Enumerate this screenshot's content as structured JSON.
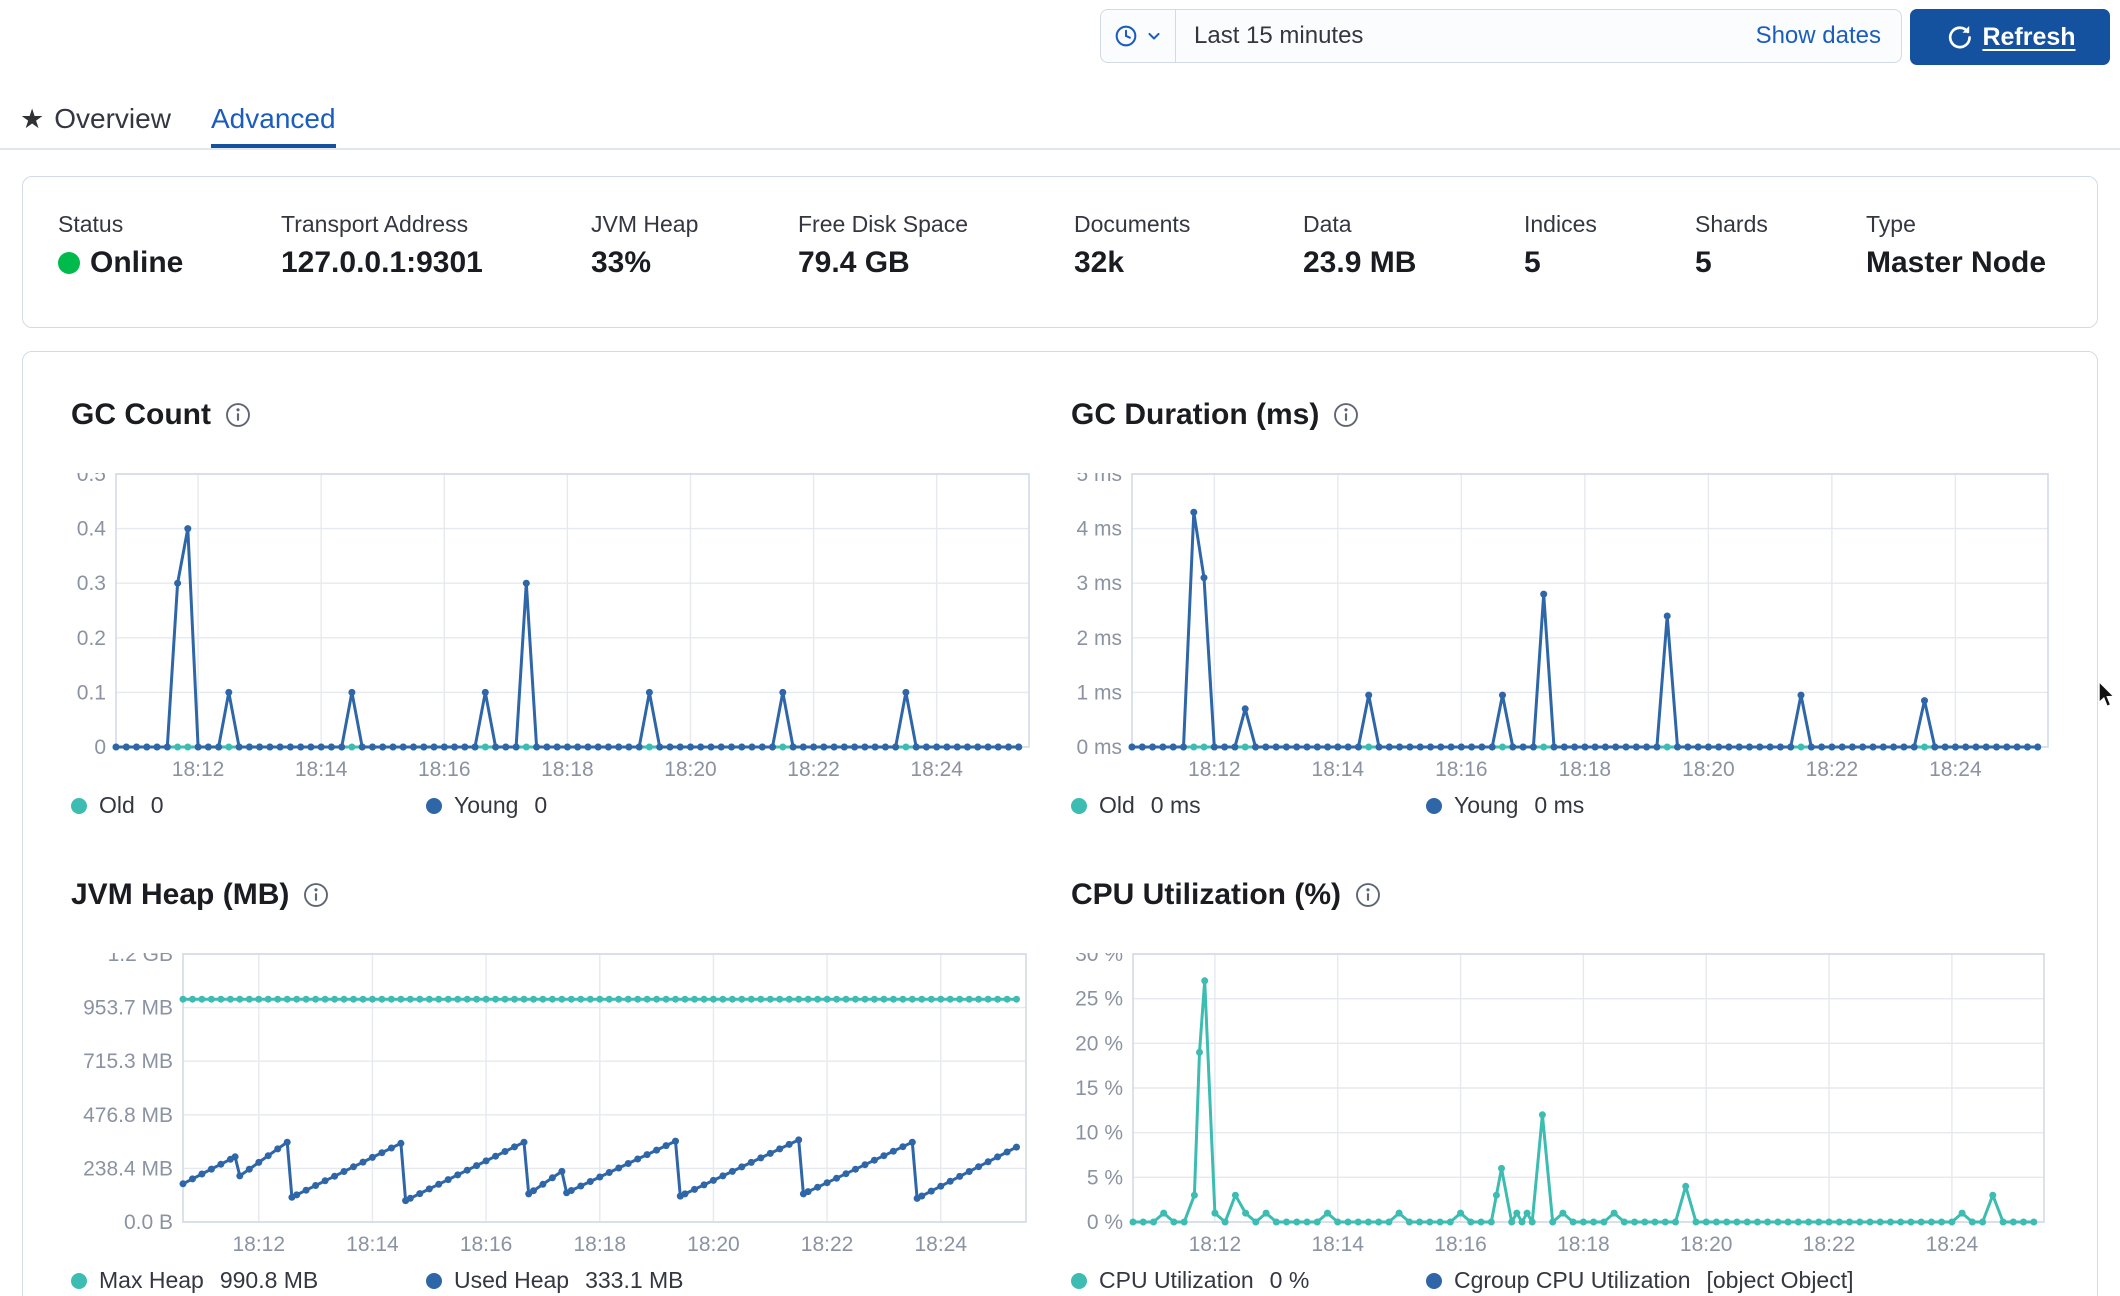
{
  "time_bar": {
    "selected_range": "Last 15 minutes",
    "show_dates_label": "Show dates",
    "refresh_label": "Refresh"
  },
  "tabs": {
    "items": [
      {
        "label": "Overview",
        "active": false
      },
      {
        "label": "Advanced",
        "active": true
      }
    ]
  },
  "status_bar": {
    "online_color": "#00bb4b",
    "stats": [
      {
        "label": "Status",
        "value": "Online",
        "health_dot": true
      },
      {
        "label": "Transport Address",
        "value": "127.0.0.1:9301"
      },
      {
        "label": "JVM Heap",
        "value": "33%"
      },
      {
        "label": "Free Disk Space",
        "value": "79.4 GB"
      },
      {
        "label": "Documents",
        "value": "32k"
      },
      {
        "label": "Data",
        "value": "23.9 MB"
      },
      {
        "label": "Indices",
        "value": "5"
      },
      {
        "label": "Shards",
        "value": "5"
      },
      {
        "label": "Type",
        "value": "Master Node"
      }
    ]
  },
  "colors": {
    "teal_series": "#3dbcb1",
    "blue_series": "#2e66a8",
    "link_blue": "#1a5dbe",
    "button_blue": "#14519e"
  },
  "chart_data": [
    {
      "type": "line",
      "title": "GC Count",
      "ylim": [
        0,
        0.5
      ],
      "y_ticks": [
        "0.5",
        "0.4",
        "0.3",
        "0.2",
        "0.1",
        "0"
      ],
      "t_domain": [
        0,
        890
      ],
      "sample_step": 10,
      "t_end": 880,
      "x_start_time": "18:10:40",
      "x_ticks": [
        {
          "t": 80,
          "label": "18:12"
        },
        {
          "t": 200,
          "label": "18:14"
        },
        {
          "t": 320,
          "label": "18:16"
        },
        {
          "t": 440,
          "label": "18:18"
        },
        {
          "t": 560,
          "label": "18:20"
        },
        {
          "t": 680,
          "label": "18:22"
        },
        {
          "t": 800,
          "label": "18:24"
        }
      ],
      "series": [
        {
          "name": "Old",
          "legend_value": "0",
          "color": "#3dbcb1",
          "baseline": 0,
          "spikes": []
        },
        {
          "name": "Young",
          "legend_value": "0",
          "color": "#2e66a8",
          "baseline": 0,
          "spikes": [
            [
              60,
              0.3
            ],
            [
              70,
              0.4
            ],
            [
              110,
              0.1
            ],
            [
              230,
              0.1
            ],
            [
              360,
              0.1
            ],
            [
              400,
              0.3
            ],
            [
              520,
              0.1
            ],
            [
              650,
              0.1
            ],
            [
              770,
              0.1
            ]
          ]
        }
      ]
    },
    {
      "type": "line",
      "title": "GC Duration (ms)",
      "ylim": [
        0,
        5
      ],
      "y_ticks": [
        "5 ms",
        "4 ms",
        "3 ms",
        "2 ms",
        "1 ms",
        "0 ms"
      ],
      "t_domain": [
        0,
        890
      ],
      "sample_step": 10,
      "t_end": 880,
      "x_start_time": "18:10:40",
      "x_ticks": [
        {
          "t": 80,
          "label": "18:12"
        },
        {
          "t": 200,
          "label": "18:14"
        },
        {
          "t": 320,
          "label": "18:16"
        },
        {
          "t": 440,
          "label": "18:18"
        },
        {
          "t": 560,
          "label": "18:20"
        },
        {
          "t": 680,
          "label": "18:22"
        },
        {
          "t": 800,
          "label": "18:24"
        }
      ],
      "series": [
        {
          "name": "Old",
          "legend_value": "0 ms",
          "color": "#3dbcb1",
          "baseline": 0,
          "spikes": []
        },
        {
          "name": "Young",
          "legend_value": "0 ms",
          "color": "#2e66a8",
          "baseline": 0,
          "spikes": [
            [
              60,
              4.3
            ],
            [
              70,
              3.1
            ],
            [
              110,
              0.7
            ],
            [
              230,
              0.95
            ],
            [
              360,
              0.95
            ],
            [
              400,
              2.8
            ],
            [
              520,
              2.4
            ],
            [
              650,
              0.95
            ],
            [
              770,
              0.85
            ]
          ]
        }
      ]
    },
    {
      "type": "line",
      "title": "JVM Heap (MB)",
      "ylim": [
        0,
        1192
      ],
      "y_ticks": [
        "1.2 GB",
        "953.7 MB",
        "715.3 MB",
        "476.8 MB",
        "238.4 MB",
        "0.0 B"
      ],
      "t_domain": [
        0,
        890
      ],
      "sample_step": 10,
      "t_end": 880,
      "x_start_time": "18:10:40",
      "x_ticks": [
        {
          "t": 80,
          "label": "18:12"
        },
        {
          "t": 200,
          "label": "18:14"
        },
        {
          "t": 320,
          "label": "18:16"
        },
        {
          "t": 440,
          "label": "18:18"
        },
        {
          "t": 560,
          "label": "18:20"
        },
        {
          "t": 680,
          "label": "18:22"
        },
        {
          "t": 800,
          "label": "18:24"
        }
      ],
      "series": [
        {
          "name": "Max Heap",
          "legend_value": "990.8 MB",
          "color": "#3dbcb1",
          "baseline": 990.8,
          "spikes": []
        },
        {
          "name": "Used Heap",
          "legend_value": "333.1 MB",
          "color": "#2e66a8",
          "vertices": [
            [
              0,
              170
            ],
            [
              55,
              290
            ],
            [
              60,
              205
            ],
            [
              110,
              355
            ],
            [
              115,
              110
            ],
            [
              230,
              350
            ],
            [
              235,
              95
            ],
            [
              360,
              355
            ],
            [
              365,
              125
            ],
            [
              400,
              225
            ],
            [
              405,
              130
            ],
            [
              520,
              360
            ],
            [
              525,
              115
            ],
            [
              650,
              365
            ],
            [
              655,
              125
            ],
            [
              770,
              355
            ],
            [
              775,
              105
            ],
            [
              880,
              333
            ]
          ]
        }
      ]
    },
    {
      "type": "line",
      "title": "CPU Utilization (%)",
      "ylim": [
        0,
        30
      ],
      "y_ticks": [
        "30 %",
        "25 %",
        "20 %",
        "15 %",
        "10 %",
        "5 %",
        "0 %"
      ],
      "t_domain": [
        0,
        890
      ],
      "sample_step": 10,
      "t_end": 880,
      "x_start_time": "18:10:40",
      "x_ticks": [
        {
          "t": 80,
          "label": "18:12"
        },
        {
          "t": 200,
          "label": "18:14"
        },
        {
          "t": 320,
          "label": "18:16"
        },
        {
          "t": 440,
          "label": "18:18"
        },
        {
          "t": 560,
          "label": "18:20"
        },
        {
          "t": 680,
          "label": "18:22"
        },
        {
          "t": 800,
          "label": "18:24"
        }
      ],
      "series": [
        {
          "name": "CPU Utilization",
          "legend_value": "0 %",
          "color": "#3dbcb1",
          "baseline": 0,
          "spikes": [
            [
              30,
              1
            ],
            [
              60,
              3
            ],
            [
              65,
              19
            ],
            [
              70,
              27
            ],
            [
              80,
              1
            ],
            [
              100,
              3
            ],
            [
              110,
              1
            ],
            [
              130,
              1
            ],
            [
              190,
              1
            ],
            [
              260,
              1
            ],
            [
              320,
              1
            ],
            [
              355,
              3
            ],
            [
              360,
              6
            ],
            [
              375,
              1
            ],
            [
              385,
              1
            ],
            [
              400,
              12
            ],
            [
              420,
              1
            ],
            [
              470,
              1
            ],
            [
              540,
              4
            ],
            [
              810,
              1
            ],
            [
              840,
              3
            ]
          ]
        },
        {
          "name": "Cgroup CPU Utilization",
          "legend_value": "[object Object]",
          "color": "#2e66a8",
          "no_data": true
        }
      ]
    }
  ]
}
